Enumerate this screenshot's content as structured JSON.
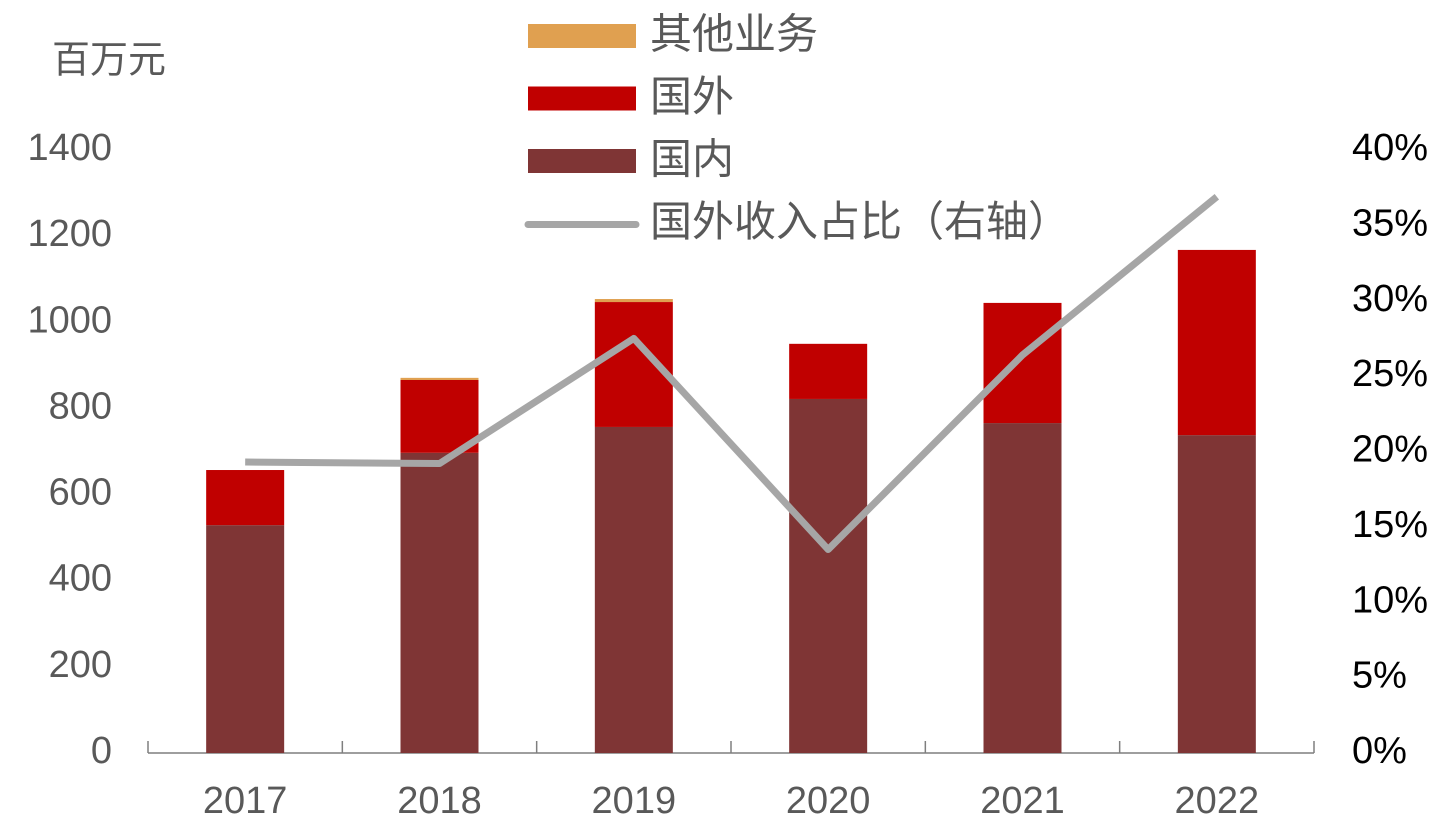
{
  "chart_data": {
    "type": "bar",
    "stacked": true,
    "y_label": "百万元",
    "categories": [
      "2017",
      "2018",
      "2019",
      "2020",
      "2021",
      "2022"
    ],
    "series": [
      {
        "name": "国内",
        "color": "#7f3535",
        "values": [
          529,
          697,
          757,
          822,
          766,
          738
        ]
      },
      {
        "name": "国外",
        "color": "#c00000",
        "values": [
          128,
          169,
          290,
          128,
          279,
          430
        ]
      },
      {
        "name": "其他业务",
        "color": "#e0a050",
        "values": [
          0,
          5,
          7,
          0,
          0,
          0
        ]
      },
      {
        "name": "国外收入占比（右轴）",
        "type": "line",
        "axis": "y2",
        "color": "#a6a6a6",
        "values": [
          19.3,
          19.2,
          27.5,
          13.5,
          26.4,
          36.9
        ]
      }
    ],
    "ylim": [
      0,
      1400
    ],
    "yticks": [
      0,
      200,
      400,
      600,
      800,
      1000,
      1200,
      1400
    ],
    "y2lim": [
      0,
      40
    ],
    "y2ticks": [
      {
        "value": 0,
        "label": "0%"
      },
      {
        "value": 5,
        "label": "5%"
      },
      {
        "value": 10,
        "label": "10%"
      },
      {
        "value": 15,
        "label": "15%"
      },
      {
        "value": 20,
        "label": "20%"
      },
      {
        "value": 25,
        "label": "25%"
      },
      {
        "value": 30,
        "label": "30%"
      },
      {
        "value": 35,
        "label": "35%"
      },
      {
        "value": 40,
        "label": "40%"
      }
    ]
  }
}
